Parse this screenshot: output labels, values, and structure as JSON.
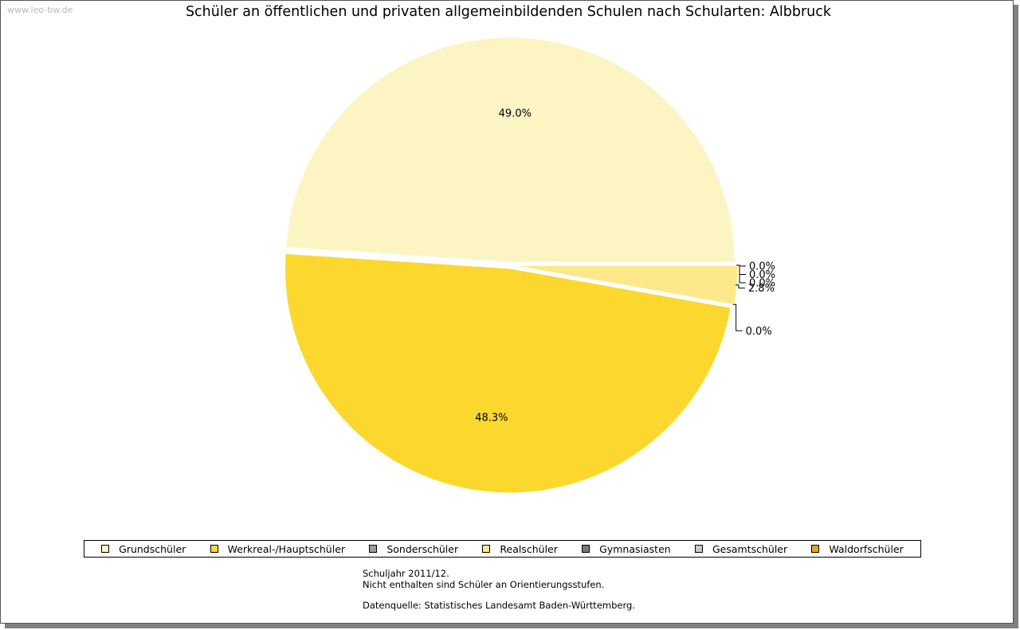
{
  "watermark": "www.leo-bw.de",
  "chart_data": {
    "type": "pie",
    "title": "Schüler an öffentlichen und privaten allgemeinbildenden Schulen nach Schularten: Albbruck",
    "slices": [
      {
        "name": "Grundschüler",
        "value": 49.0,
        "label": "49.0%",
        "color": "#FDF4C4"
      },
      {
        "name": "Werkreal-/Hauptschüler",
        "value": 48.3,
        "label": "48.3%",
        "color": "#FCD72E"
      },
      {
        "name": "Sonderschüler",
        "value": 0.0,
        "label": "0.0%",
        "color": "#9C9C9C"
      },
      {
        "name": "Realschüler",
        "value": 2.8,
        "label": "2.8%",
        "color": "#FDE98A"
      },
      {
        "name": "Gymnasiasten",
        "value": 0.0,
        "label": "0.0%",
        "color": "#7A7A7A"
      },
      {
        "name": "Gesamtschüler",
        "value": 0.0,
        "label": "0.0%",
        "color": "#C8C8C8"
      },
      {
        "name": "Waldorfschüler",
        "value": 0.0,
        "label": "0.0%",
        "color": "#E0A81E"
      }
    ],
    "legend_position": "bottom"
  },
  "footnote": {
    "line1": "Schuljahr 2011/12.",
    "line2": "Nicht enthalten sind Schüler an Orientierungsstufen.",
    "line3": "Datenquelle: Statistisches Landesamt Baden-Württemberg."
  }
}
